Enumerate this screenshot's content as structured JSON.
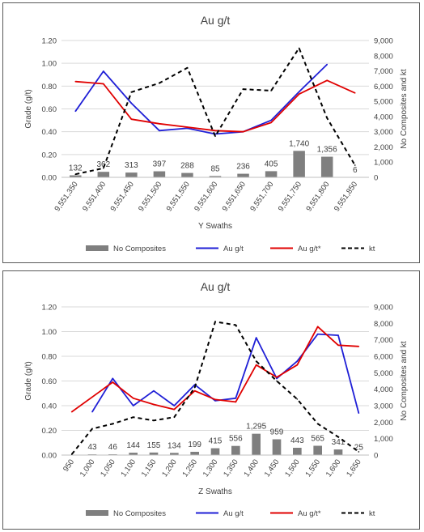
{
  "colors": {
    "bar": "#7f7f7f",
    "au": "#1f1fd6",
    "au_star": "#e00000",
    "kt": "#000000",
    "grid": "#d9d9d9",
    "text": "#404040"
  },
  "chart_data": [
    {
      "type": "bar+line",
      "title": "Au g/t",
      "xlabel": "Y Swaths",
      "ylabel": "Grade (g/t)",
      "y2label": "No Composites and kt",
      "ylim": [
        0,
        1.2
      ],
      "y2lim": [
        0,
        9000
      ],
      "yticks": [
        "0.00",
        "0.20",
        "0.40",
        "0.60",
        "0.80",
        "1.00",
        "1.20"
      ],
      "y2ticks": [
        "0",
        "1,000",
        "2,000",
        "3,000",
        "4,000",
        "5,000",
        "6,000",
        "7,000",
        "8,000",
        "9,000"
      ],
      "categories": [
        "9,551,350",
        "9,551,400",
        "9,551,450",
        "9,551,500",
        "9,551,550",
        "9,551,600",
        "9,551,650",
        "9,551,700",
        "9,551,750",
        "9,551,800",
        "9,551,850"
      ],
      "grid": true,
      "legend_position": "bottom",
      "bar_labels": [
        "132",
        "362",
        "313",
        "397",
        "288",
        "85",
        "236",
        "405",
        "1,740",
        "1,356",
        "6"
      ],
      "series": [
        {
          "name": "No Composites",
          "kind": "bar",
          "axis": "y2",
          "values": [
            132,
            362,
            313,
            397,
            288,
            85,
            236,
            405,
            1740,
            1356,
            6
          ]
        },
        {
          "name": "Au g/t",
          "kind": "line",
          "axis": "y",
          "values": [
            0.58,
            0.93,
            0.65,
            0.41,
            0.43,
            0.38,
            0.4,
            0.5,
            0.75,
            0.99,
            null
          ]
        },
        {
          "name": "Au g/t*",
          "kind": "line",
          "axis": "y",
          "values": [
            0.84,
            0.82,
            0.51,
            0.47,
            0.44,
            0.41,
            0.4,
            0.48,
            0.73,
            0.85,
            0.74
          ]
        },
        {
          "name": "kt",
          "kind": "dashed",
          "axis": "y2",
          "values": [
            200,
            600,
            5600,
            6200,
            7200,
            2700,
            5800,
            5700,
            8500,
            3900,
            800
          ]
        }
      ]
    },
    {
      "type": "bar+line",
      "title": "Au g/t",
      "xlabel": "Z Swaths",
      "ylabel": "Grade (g/t)",
      "y2label": "No Composites and kt",
      "ylim": [
        0,
        1.2
      ],
      "y2lim": [
        0,
        9000
      ],
      "yticks": [
        "0.00",
        "0.20",
        "0.40",
        "0.60",
        "0.80",
        "1.00",
        "1.20"
      ],
      "y2ticks": [
        "0",
        "1,000",
        "2,000",
        "3,000",
        "4,000",
        "5,000",
        "6,000",
        "7,000",
        "8,000",
        "9,000"
      ],
      "categories": [
        "950",
        "1,000",
        "1,050",
        "1,100",
        "1,150",
        "1,200",
        "1,250",
        "1,300",
        "1,350",
        "1,400",
        "1,450",
        "1,500",
        "1,550",
        "1,600",
        "1,650"
      ],
      "grid": true,
      "legend_position": "bottom",
      "bar_labels": [
        "",
        "43",
        "46",
        "144",
        "155",
        "134",
        "199",
        "415",
        "556",
        "1,295",
        "959",
        "443",
        "565",
        "341",
        "25"
      ],
      "series": [
        {
          "name": "No Composites",
          "kind": "bar",
          "axis": "y2",
          "values": [
            0,
            43,
            46,
            144,
            155,
            134,
            199,
            415,
            556,
            1295,
            959,
            443,
            565,
            341,
            25
          ]
        },
        {
          "name": "Au g/t",
          "kind": "line",
          "axis": "y",
          "values": [
            null,
            0.35,
            0.62,
            0.4,
            0.52,
            0.4,
            0.57,
            0.44,
            0.46,
            0.95,
            0.62,
            0.76,
            0.98,
            0.97,
            0.34
          ]
        },
        {
          "name": "Au g/t*",
          "kind": "line",
          "axis": "y",
          "values": [
            0.35,
            null,
            0.59,
            0.46,
            0.41,
            0.37,
            0.52,
            0.45,
            0.43,
            0.73,
            0.63,
            0.73,
            1.04,
            0.89,
            0.88
          ]
        },
        {
          "name": "kt",
          "kind": "dashed",
          "axis": "y2",
          "values": [
            50,
            1600,
            1900,
            2300,
            2100,
            2300,
            4100,
            8100,
            7900,
            5700,
            4500,
            3400,
            1900,
            1100,
            200
          ]
        }
      ]
    }
  ]
}
